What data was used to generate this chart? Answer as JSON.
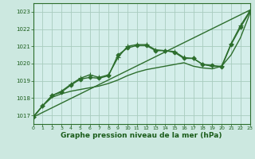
{
  "title": "Graphe pression niveau de la mer (hPa)",
  "background_color": "#d8f0e8",
  "plot_bg_color": "#d8f0ee",
  "grid_color": "#b0d8c8",
  "line_color": "#2d6e2d",
  "xlim": [
    0,
    23
  ],
  "ylim": [
    1016.5,
    1023.5
  ],
  "yticks": [
    1017,
    1018,
    1019,
    1020,
    1021,
    1022,
    1023
  ],
  "xticks": [
    0,
    1,
    2,
    3,
    4,
    5,
    6,
    7,
    8,
    9,
    10,
    11,
    12,
    13,
    14,
    15,
    16,
    17,
    18,
    19,
    20,
    21,
    22,
    23
  ],
  "series": [
    {
      "x": [
        0,
        23
      ],
      "y": [
        1016.9,
        1023.1
      ],
      "marker": null,
      "linewidth": 1.0
    },
    {
      "x": [
        0,
        1,
        2,
        3,
        4,
        5,
        6,
        7,
        8,
        9,
        10,
        11,
        12,
        13,
        14,
        15,
        16,
        17,
        18,
        19,
        20,
        21,
        22,
        23
      ],
      "y": [
        1016.9,
        1017.55,
        1018.05,
        1018.25,
        1018.4,
        1018.5,
        1018.6,
        1018.7,
        1018.85,
        1019.05,
        1019.3,
        1019.5,
        1019.65,
        1019.75,
        1019.85,
        1019.95,
        1020.05,
        1019.85,
        1019.75,
        1019.7,
        1019.85,
        1020.5,
        1021.5,
        1022.9
      ],
      "marker": null,
      "linewidth": 1.0
    },
    {
      "x": [
        0,
        1,
        2,
        3,
        4,
        5,
        6,
        7,
        8,
        9,
        10,
        11,
        12,
        13,
        14,
        15,
        16,
        17,
        18,
        19,
        20,
        21,
        22,
        23
      ],
      "y": [
        1016.9,
        1017.55,
        1018.15,
        1018.35,
        1018.75,
        1019.1,
        1019.2,
        1019.15,
        1019.3,
        1020.5,
        1020.9,
        1021.05,
        1021.05,
        1020.75,
        1020.75,
        1020.65,
        1020.3,
        1020.3,
        1019.95,
        1019.9,
        1019.8,
        1021.1,
        1022.1,
        1023.0
      ],
      "marker": "D",
      "markersize": 2.5,
      "linewidth": 1.0
    },
    {
      "x": [
        0,
        1,
        2,
        3,
        4,
        5,
        6,
        7,
        8,
        9,
        10,
        11,
        12,
        13,
        14,
        15,
        16,
        17,
        18,
        19,
        20,
        21,
        22,
        23
      ],
      "y": [
        1016.9,
        1017.55,
        1018.15,
        1018.4,
        1018.8,
        1019.15,
        1019.35,
        1019.2,
        1019.35,
        1020.35,
        1021.0,
        1021.1,
        1021.1,
        1020.8,
        1020.75,
        1020.7,
        1020.35,
        1020.3,
        1019.95,
        1019.85,
        1019.85,
        1021.15,
        1022.2,
        1023.05
      ],
      "marker": "+",
      "markersize": 5,
      "linewidth": 1.0
    }
  ]
}
